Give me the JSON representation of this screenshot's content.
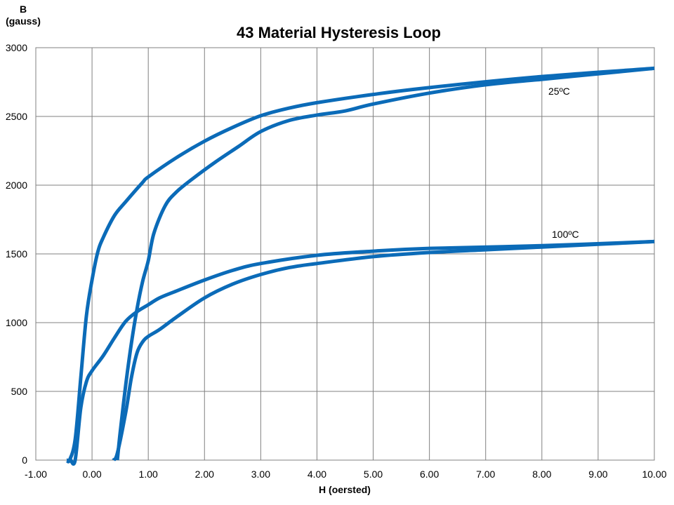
{
  "chart_data": {
    "type": "line",
    "title": "43 Material Hysteresis Loop",
    "ylabel_symbol": "B",
    "ylabel_unit": "(gauss)",
    "xlabel": "H (oersted)",
    "xlim": [
      -1,
      10
    ],
    "ylim": [
      0,
      3000
    ],
    "grid": true,
    "legend": "inline labels",
    "x_ticks": [
      "-1.00",
      "0.00",
      "1.00",
      "2.00",
      "3.00",
      "4.00",
      "5.00",
      "6.00",
      "7.00",
      "8.00",
      "9.00",
      "10.00"
    ],
    "y_ticks": [
      "0",
      "500",
      "1000",
      "1500",
      "2000",
      "2500",
      "3000"
    ],
    "line_color": "#0B6BB8",
    "series": [
      {
        "name": "25ºC",
        "label": "25ºC",
        "branches": [
          {
            "name": "descending",
            "x": [
              10,
              8,
              6,
              5,
              4,
              3.5,
              3,
              2.5,
              2,
              1.5,
              1,
              0.9,
              0.6,
              0.4,
              0.2,
              0.1,
              0,
              -0.1,
              -0.2,
              -0.3,
              -0.4,
              -0.45
            ],
            "y": [
              2850,
              2790,
              2710,
              2660,
              2600,
              2560,
              2505,
              2420,
              2320,
              2200,
              2060,
              2020,
              1880,
              1780,
              1620,
              1510,
              1310,
              1050,
              600,
              150,
              0,
              0
            ]
          },
          {
            "name": "ascending",
            "x": [
              0.45,
              0.5,
              0.6,
              0.7,
              0.8,
              0.9,
              1.0,
              1.1,
              1.3,
              1.5,
              1.8,
              2.2,
              2.6,
              3.0,
              3.5,
              4.0,
              4.5,
              5.0,
              6.0,
              7.0,
              8.0,
              9.0,
              10
            ],
            "y": [
              0,
              200,
              550,
              850,
              1100,
              1300,
              1450,
              1650,
              1850,
              1950,
              2050,
              2170,
              2280,
              2390,
              2470,
              2510,
              2540,
              2590,
              2670,
              2730,
              2770,
              2810,
              2850
            ]
          }
        ]
      },
      {
        "name": "100ºC",
        "label": "100ºC",
        "branches": [
          {
            "name": "descending",
            "x": [
              10,
              8,
              6,
              5,
              4,
              3,
              2.5,
              2,
              1.5,
              1.2,
              1,
              0.8,
              0.6,
              0.4,
              0.2,
              0,
              -0.1,
              -0.2,
              -0.3,
              -0.38
            ],
            "y": [
              1590,
              1560,
              1540,
              1520,
              1490,
              1430,
              1380,
              1310,
              1230,
              1180,
              1130,
              1080,
              1010,
              890,
              760,
              650,
              570,
              380,
              0,
              0
            ]
          },
          {
            "name": "ascending",
            "x": [
              0.38,
              0.45,
              0.6,
              0.7,
              0.8,
              0.9,
              1.0,
              1.2,
              1.5,
              2.0,
              2.5,
              3.0,
              3.5,
              4.0,
              5.0,
              6.0,
              7.0,
              8.0,
              9.0,
              10
            ],
            "y": [
              0,
              50,
              350,
              600,
              780,
              860,
              900,
              950,
              1040,
              1180,
              1280,
              1350,
              1400,
              1430,
              1480,
              1510,
              1530,
              1550,
              1570,
              1590
            ]
          }
        ]
      }
    ]
  }
}
